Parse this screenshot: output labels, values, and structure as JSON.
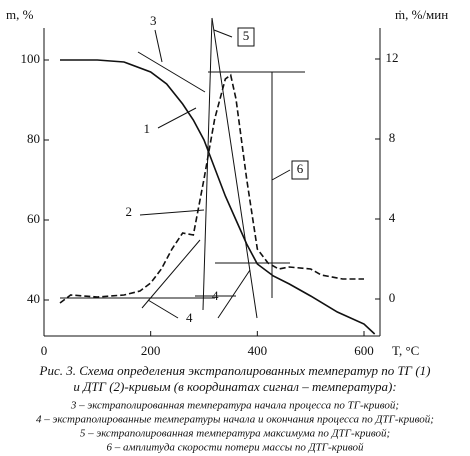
{
  "chart_data": {
    "type": "line",
    "ylabel": "m, %",
    "y2label": "ṁ, %/мин",
    "xlabel": "T, °C",
    "xlim": [
      0,
      630
    ],
    "xticks": [
      0,
      200,
      400,
      600
    ],
    "ylim": [
      31,
      108
    ],
    "yticks": [
      40,
      60,
      80,
      100
    ],
    "y2lim": [
      -1.85,
      13.55
    ],
    "y2ticks": [
      0,
      4,
      8,
      12
    ],
    "series": [
      {
        "name": "1",
        "color": "#111111",
        "dash": false,
        "x": [
          30,
          100,
          150,
          200,
          230,
          260,
          280,
          300,
          320,
          340,
          360,
          380,
          400,
          430,
          460,
          500,
          550,
          600,
          620
        ],
        "values": [
          100,
          100,
          99.5,
          97,
          94,
          89,
          85,
          80,
          73,
          66,
          60,
          54,
          49,
          46,
          44,
          41,
          37,
          34,
          31.5
        ]
      },
      {
        "name": "2",
        "color": "#111111",
        "dash": true,
        "axis": "y2",
        "x": [
          30,
          50,
          100,
          150,
          180,
          200,
          220,
          240,
          260,
          280,
          300,
          320,
          340,
          350,
          360,
          380,
          400,
          420,
          440,
          460,
          500,
          520,
          560,
          600
        ],
        "values": [
          -0.2,
          0.2,
          0.1,
          0.2,
          0.4,
          0.8,
          1.5,
          2.5,
          3.3,
          3.2,
          6,
          9,
          11,
          11.2,
          10,
          6,
          2.5,
          1.8,
          1.5,
          1.6,
          1.5,
          1.2,
          1.0,
          1.0
        ]
      }
    ],
    "annotations": [
      "3",
      "5",
      "1",
      "2",
      "4",
      "4",
      "6"
    ],
    "caption_title": [
      "Рис. 3. Схема определения экстраполированных температур по ТГ (1)",
      "и ДТГ (2)-кривым (в координатах сигнал – температура):"
    ],
    "caption_items": [
      "3 – экстраполированная температура начала процесса по ТГ-кривой;",
      "4 – экстраполированные температуры начала и окончания процесса по ДТГ-кривой;",
      "5 – экстраполированная температура максимума по ДТГ-кривой;",
      "6 – амплитуда скорости потери массы по ДТГ-кривой"
    ]
  }
}
